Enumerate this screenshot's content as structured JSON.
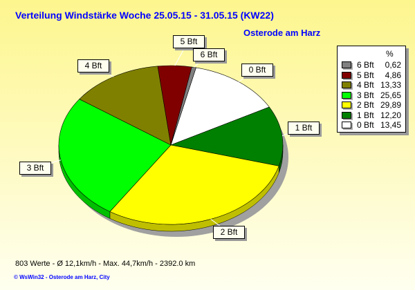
{
  "chart_data": {
    "type": "pie",
    "title": "Verteilung Windstärke  Woche 25.05.15 - 31.05.15 (KW22)",
    "subtitle": "Osterode am Harz",
    "legend_header": "%",
    "legend_placement": "right",
    "slices": [
      {
        "name": "0 Bft",
        "value": 13.45,
        "value_label": "13,45",
        "color": "#ffffff"
      },
      {
        "name": "1 Bft",
        "value": 12.2,
        "value_label": "12,20",
        "color": "#008000"
      },
      {
        "name": "2 Bft",
        "value": 29.89,
        "value_label": "29,89",
        "color": "#ffff00"
      },
      {
        "name": "3 Bft",
        "value": 25.65,
        "value_label": "25,65",
        "color": "#00ff00"
      },
      {
        "name": "4 Bft",
        "value": 13.33,
        "value_label": "13,33",
        "color": "#808000"
      },
      {
        "name": "5 Bft",
        "value": 4.86,
        "value_label": "4,86",
        "color": "#800000"
      },
      {
        "name": "6 Bft",
        "value": 0.62,
        "value_label": "0,62",
        "color": "#808080"
      }
    ],
    "legend_order": [
      6,
      5,
      4,
      3,
      2,
      1,
      0
    ]
  },
  "footer": {
    "stats": "803 Werte   -   Ø 12,1km/h  -  Max. 44,7km/h   -   2392.0 km",
    "credit": "© WsWin32   -   Osterode am Harz, City"
  }
}
